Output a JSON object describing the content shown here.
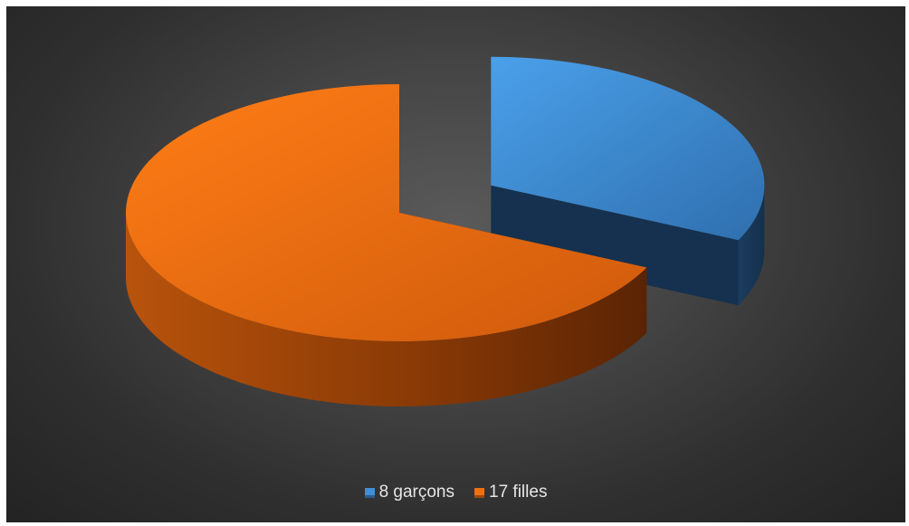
{
  "chart_data": {
    "type": "pie",
    "three_d": true,
    "legend_position": "bottom",
    "slices": [
      {
        "label": "8 garçons",
        "value": 8,
        "color": "#3f8fd8",
        "exploded": true
      },
      {
        "label": "17 filles",
        "value": 17,
        "color": "#ef6f12",
        "exploded": false
      }
    ]
  }
}
